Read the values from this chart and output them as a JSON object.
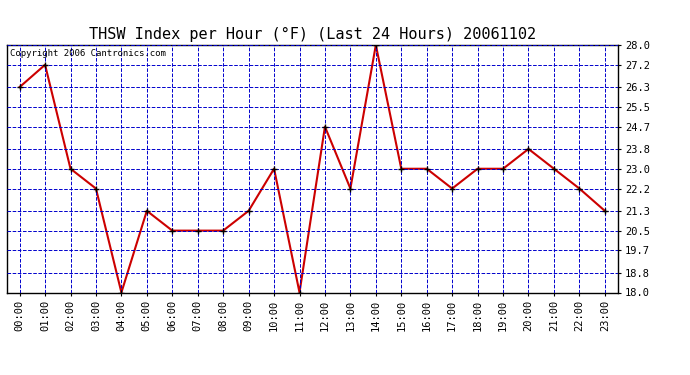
{
  "title": "THSW Index per Hour (°F) (Last 24 Hours) 20061102",
  "copyright_text": "Copyright 2006 Cantronics.com",
  "x_labels": [
    "00:00",
    "01:00",
    "02:00",
    "03:00",
    "04:00",
    "05:00",
    "06:00",
    "07:00",
    "08:00",
    "09:00",
    "10:00",
    "11:00",
    "12:00",
    "13:00",
    "14:00",
    "15:00",
    "16:00",
    "17:00",
    "18:00",
    "19:00",
    "20:00",
    "21:00",
    "22:00",
    "23:00"
  ],
  "y_values": [
    26.3,
    27.2,
    23.0,
    22.2,
    18.0,
    21.3,
    20.5,
    20.5,
    20.5,
    21.3,
    23.0,
    18.0,
    24.7,
    22.2,
    28.0,
    23.0,
    23.0,
    22.2,
    23.0,
    23.0,
    23.8,
    23.0,
    22.2,
    21.3
  ],
  "y_ticks": [
    18.0,
    18.8,
    19.7,
    20.5,
    21.3,
    22.2,
    23.0,
    23.8,
    24.7,
    25.5,
    26.3,
    27.2,
    28.0
  ],
  "y_min": 18.0,
  "y_max": 28.0,
  "line_color": "#cc0000",
  "marker_color": "#000000",
  "bg_color": "#ffffff",
  "plot_bg_color": "#ffffff",
  "grid_color": "#0000cc",
  "title_color": "#000000",
  "title_fontsize": 11,
  "copyright_fontsize": 6.5,
  "tick_label_fontsize": 7.5,
  "marker_size": 5,
  "linewidth": 1.5
}
